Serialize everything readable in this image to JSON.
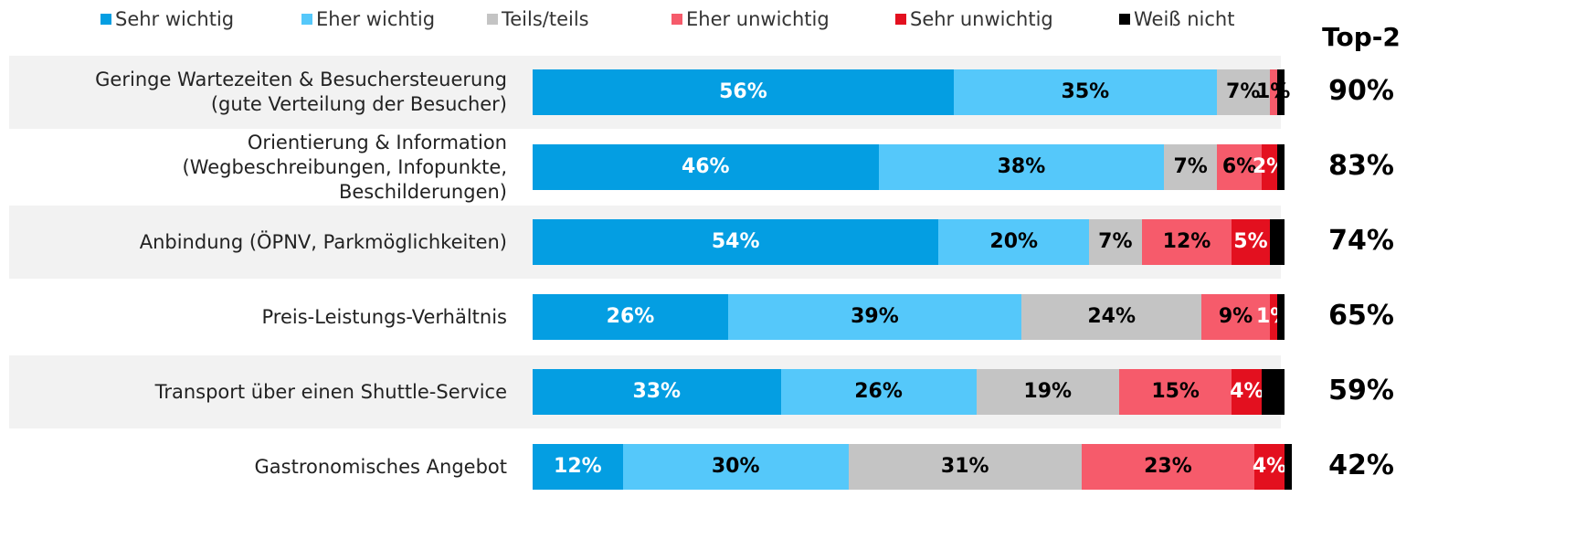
{
  "chart_data": {
    "type": "stacked_bar_horizontal",
    "categories": [
      "Geringe Wartezeiten & Besuchersteuerung\n(gute Verteilung der Besucher)",
      "Orientierung & Information\n(Wegbeschreibungen, Infopunkte,\nBeschilderungen)",
      "Anbindung (ÖPNV, Parkmöglichkeiten)",
      "Preis-Leistungs-Verhältnis",
      "Transport über einen Shuttle-Service",
      "Gastronomisches Angebot"
    ],
    "xlim": [
      0,
      100
    ],
    "series": [
      {
        "name": "Sehr wichtig",
        "color": "#049ee2",
        "label_color": "#ffffff",
        "values": [
          56,
          46,
          54,
          26,
          33,
          12
        ],
        "value_labels": [
          "56%",
          "46%",
          "54%",
          "26%",
          "33%",
          "12%"
        ]
      },
      {
        "name": "Eher wichtig",
        "color": "#55c8fa",
        "label_color": "#000000",
        "values": [
          35,
          38,
          20,
          39,
          26,
          30
        ],
        "value_labels": [
          "35%",
          "38%",
          "20%",
          "39%",
          "26%",
          "30%"
        ]
      },
      {
        "name": "Teils/teils",
        "color": "#c4c4c4",
        "label_color": "#000000",
        "values": [
          7,
          7,
          7,
          24,
          19,
          31
        ],
        "value_labels": [
          "7%",
          "7%",
          "7%",
          "24%",
          "19%",
          "31%"
        ]
      },
      {
        "name": "Eher unwichtig",
        "color": "#f65b6b",
        "label_color": "#000000",
        "values": [
          1,
          6,
          12,
          9,
          15,
          23
        ],
        "value_labels": [
          "1%",
          "6%",
          "12%",
          "9%",
          "15%",
          "23%"
        ]
      },
      {
        "name": "Sehr unwichtig",
        "color": "#e3101f",
        "label_color": "#ffffff",
        "values": [
          0,
          2,
          5,
          1,
          4,
          4
        ],
        "value_labels": [
          null,
          "2%",
          "5%",
          "1%",
          "4%",
          "4%"
        ]
      },
      {
        "name": "Weiß nicht",
        "color": "#000000",
        "label_color": "#ffffff",
        "values": [
          1,
          1,
          2,
          1,
          3,
          1
        ],
        "value_labels": [
          null,
          null,
          null,
          null,
          null,
          null
        ]
      }
    ],
    "top2": {
      "title": "Top-2",
      "values": [
        90,
        83,
        74,
        65,
        59,
        42
      ],
      "value_labels": [
        "90%",
        "83%",
        "74%",
        "65%",
        "59%",
        "42%"
      ]
    }
  }
}
